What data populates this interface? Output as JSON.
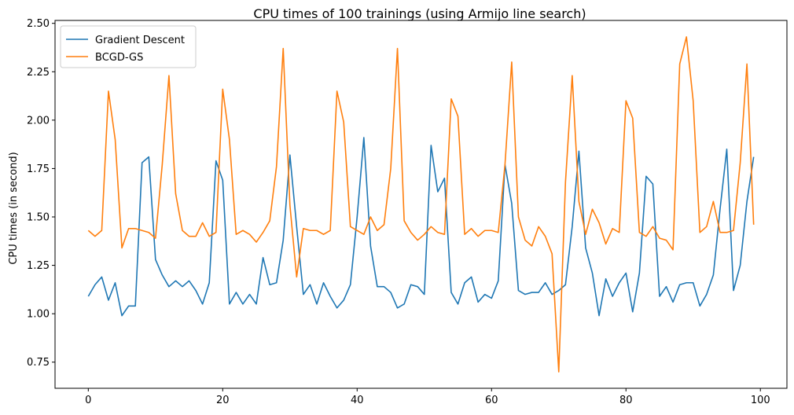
{
  "chart_data": {
    "type": "line",
    "title": "CPU times of 100 trainings (using Armijo line search)",
    "xlabel": "",
    "ylabel": "CPU times (in second)",
    "xlim": [
      -4.95,
      103.95
    ],
    "ylim": [
      0.615,
      2.515
    ],
    "xticks": [
      0,
      20,
      40,
      60,
      80,
      100
    ],
    "yticks": [
      0.75,
      1.0,
      1.25,
      1.5,
      1.75,
      2.0,
      2.25,
      2.5
    ],
    "ytick_labels": [
      "0.75",
      "1.00",
      "1.25",
      "1.50",
      "1.75",
      "2.00",
      "2.25",
      "2.50"
    ],
    "legend_position": "upper-left",
    "grid": false,
    "series": [
      {
        "name": "Gradient Descent",
        "color": "#1f77b4",
        "values": [
          1.09,
          1.15,
          1.19,
          1.07,
          1.16,
          0.99,
          1.04,
          1.04,
          1.78,
          1.81,
          1.28,
          1.2,
          1.14,
          1.17,
          1.14,
          1.17,
          1.12,
          1.05,
          1.16,
          1.79,
          1.69,
          1.05,
          1.11,
          1.05,
          1.1,
          1.05,
          1.29,
          1.15,
          1.16,
          1.38,
          1.82,
          1.45,
          1.1,
          1.15,
          1.05,
          1.16,
          1.09,
          1.03,
          1.07,
          1.15,
          1.5,
          1.91,
          1.35,
          1.14,
          1.14,
          1.11,
          1.03,
          1.05,
          1.15,
          1.14,
          1.1,
          1.87,
          1.63,
          1.7,
          1.11,
          1.05,
          1.16,
          1.19,
          1.06,
          1.1,
          1.08,
          1.17,
          1.77,
          1.57,
          1.12,
          1.1,
          1.11,
          1.11,
          1.16,
          1.1,
          1.12,
          1.15,
          1.45,
          1.84,
          1.34,
          1.21,
          0.99,
          1.18,
          1.09,
          1.16,
          1.21,
          1.01,
          1.21,
          1.71,
          1.67,
          1.09,
          1.14,
          1.06,
          1.15,
          1.16,
          1.16,
          1.04,
          1.1,
          1.2,
          1.54,
          1.85,
          1.12,
          1.25,
          1.58,
          1.81
        ]
      },
      {
        "name": "BCGD-GS",
        "color": "#ff7f0e",
        "values": [
          1.43,
          1.4,
          1.43,
          2.15,
          1.9,
          1.34,
          1.44,
          1.44,
          1.43,
          1.42,
          1.39,
          1.77,
          2.23,
          1.62,
          1.43,
          1.4,
          1.4,
          1.47,
          1.4,
          1.42,
          2.16,
          1.9,
          1.41,
          1.43,
          1.41,
          1.37,
          1.42,
          1.48,
          1.76,
          2.37,
          1.56,
          1.19,
          1.44,
          1.43,
          1.43,
          1.41,
          1.43,
          2.15,
          1.99,
          1.45,
          1.43,
          1.41,
          1.5,
          1.43,
          1.46,
          1.75,
          2.37,
          1.48,
          1.42,
          1.38,
          1.41,
          1.45,
          1.42,
          1.41,
          2.11,
          2.02,
          1.41,
          1.44,
          1.4,
          1.43,
          1.43,
          1.42,
          1.77,
          2.3,
          1.5,
          1.38,
          1.35,
          1.45,
          1.4,
          1.31,
          0.7,
          1.68,
          2.23,
          1.58,
          1.41,
          1.54,
          1.47,
          1.36,
          1.44,
          1.42,
          2.1,
          2.01,
          1.42,
          1.4,
          1.45,
          1.39,
          1.38,
          1.33,
          2.29,
          2.43,
          2.1,
          1.42,
          1.45,
          1.58,
          1.42,
          1.42,
          1.43,
          1.78,
          2.29,
          1.46
        ]
      }
    ]
  }
}
